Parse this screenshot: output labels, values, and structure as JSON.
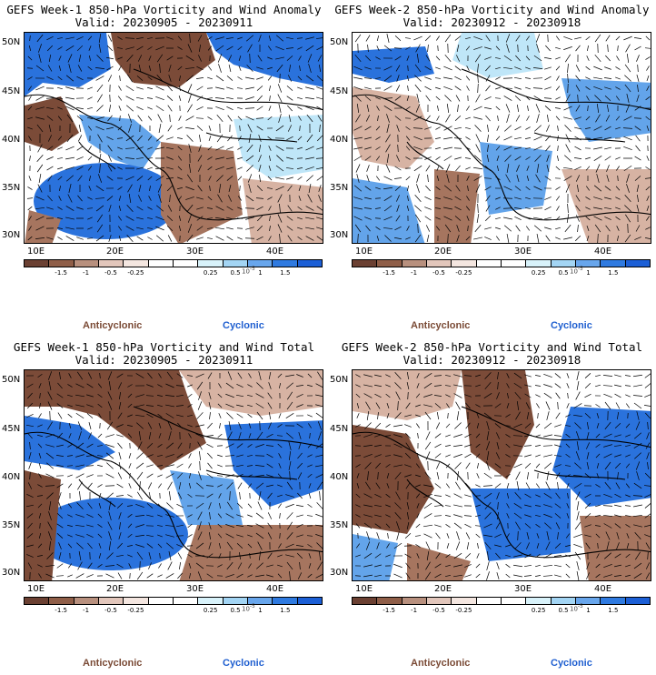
{
  "panels": [
    {
      "title": "GEFS Week-1 850-hPa Vorticity and Wind Anomaly",
      "valid": "Valid: 20230905 - 20230911"
    },
    {
      "title": "GEFS Week-2 850-hPa Vorticity and Wind Anomaly",
      "valid": "Valid: 20230912 - 20230918"
    },
    {
      "title": "GEFS Week-1 850-hPa Vorticity and Wind Total",
      "valid": "Valid: 20230905 - 20230911"
    },
    {
      "title": "GEFS Week-2 850-hPa Vorticity and Wind Total",
      "valid": "Valid: 20230912 - 20230918"
    }
  ],
  "axes": {
    "lat_labels": [
      "50N",
      "45N",
      "40N",
      "35N",
      "30N"
    ],
    "lon_labels": [
      "10E",
      "20E",
      "30E",
      "40E"
    ]
  },
  "colorbar": {
    "colors": [
      "#6b4032",
      "#8f5e48",
      "#b8907e",
      "#e2c6bb",
      "#f4e6e0",
      "#ffffff",
      "#ffffff",
      "#d8f2fa",
      "#a3d5f4",
      "#68a6ec",
      "#2f7ae0",
      "#1c5fd6"
    ],
    "tick_labels": [
      "-1.5",
      "-1",
      "-0.5",
      "-0.25",
      "0.25",
      "0.5",
      "1",
      "1.5"
    ],
    "scale_label": "10",
    "scale_exp": "-5"
  },
  "legend": {
    "anticyclonic": "Anticyclonic",
    "cyclonic": "Cyclonic",
    "anticyclonic_color": "#7a4a35",
    "cyclonic_color": "#1f5fd0"
  },
  "map_colors": {
    "brown_dark": "#7b4b38",
    "brown_mid": "#a6755f",
    "brown_light": "#d7b3a3",
    "blue_light": "#bfe6f8",
    "blue_mid": "#63a4ea",
    "blue_dark": "#2a72dc"
  }
}
